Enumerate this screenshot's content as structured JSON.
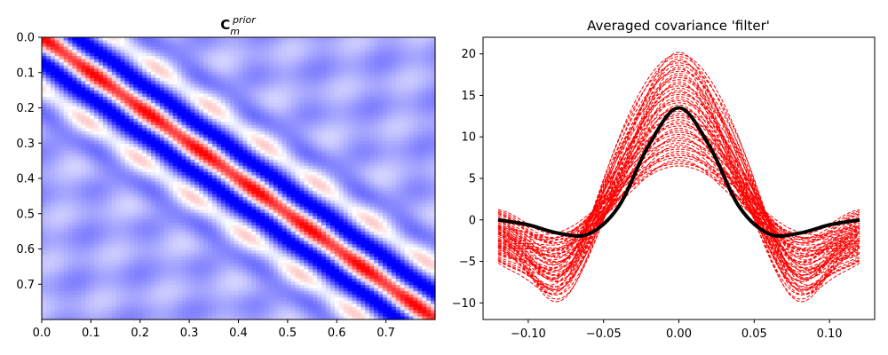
{
  "chart_data": [
    {
      "type": "heatmap",
      "title": "C",
      "title_subscript": "m",
      "title_superscript": "prior",
      "colormap": "bwr",
      "x_range": [
        0.0,
        0.8
      ],
      "y_range": [
        0.0,
        0.8
      ],
      "y_inverted": true,
      "x_ticks": [
        "0.0",
        "0.1",
        "0.2",
        "0.3",
        "0.4",
        "0.5",
        "0.6",
        "0.7"
      ],
      "y_ticks": [
        "0.0",
        "0.1",
        "0.2",
        "0.3",
        "0.4",
        "0.5",
        "0.6",
        "0.7"
      ],
      "value_range": [
        -1,
        1
      ]
    },
    {
      "type": "line",
      "title": "Averaged covariance 'filter'",
      "xlim": [
        -0.13,
        0.13
      ],
      "ylim": [
        -12,
        22
      ],
      "x_ticks": [
        "−0.10",
        "−0.05",
        "0.00",
        "0.05",
        "0.10"
      ],
      "y_ticks": [
        "−10",
        "−5",
        "0",
        "5",
        "10",
        "15",
        "20"
      ],
      "series": [
        {
          "style": "dashed-bundle",
          "color": "#ff0000",
          "count": 55,
          "x_range": [
            -0.12,
            0.12
          ],
          "peak_range": [
            6.5,
            20.2
          ],
          "trough_range": [
            -2.0,
            -10.2
          ],
          "edge_range": [
            -4.0,
            1.5
          ]
        },
        {
          "style": "mean",
          "color": "#000000",
          "x": [
            -0.12,
            -0.1,
            -0.08,
            -0.06,
            -0.04,
            -0.02,
            0.0,
            0.02,
            0.04,
            0.06,
            0.08,
            0.1,
            0.12
          ],
          "y": [
            0.0,
            -0.6,
            -1.6,
            -1.7,
            1.6,
            9.0,
            13.5,
            9.0,
            1.6,
            -1.7,
            -1.6,
            -0.6,
            0.0
          ]
        }
      ]
    }
  ]
}
